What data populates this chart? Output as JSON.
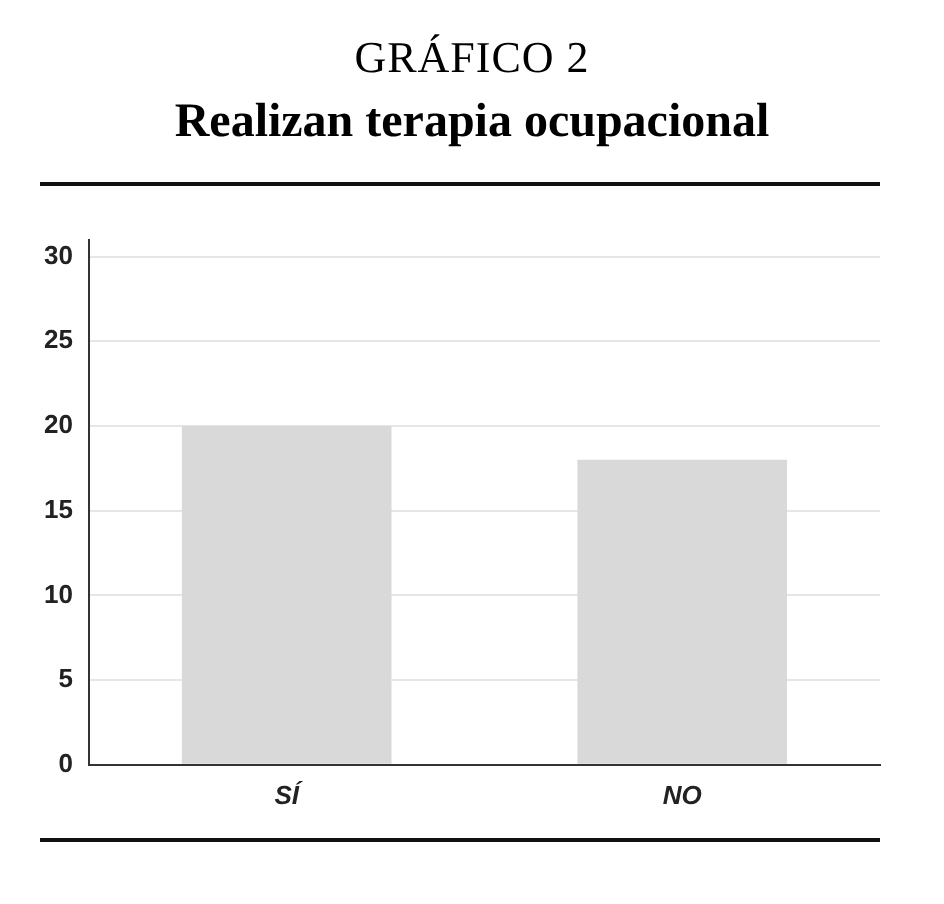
{
  "chart_data": {
    "type": "bar",
    "title": "GRÁFICO 2",
    "subtitle": "Realizan terapia ocupacional",
    "categories": [
      "SÍ",
      "NO"
    ],
    "values": [
      20,
      18
    ],
    "color": "#d9d9d9",
    "ylim": [
      0,
      31
    ],
    "yticks": [
      0,
      5,
      10,
      15,
      20,
      25,
      30
    ],
    "grid": "y",
    "legend": false
  }
}
